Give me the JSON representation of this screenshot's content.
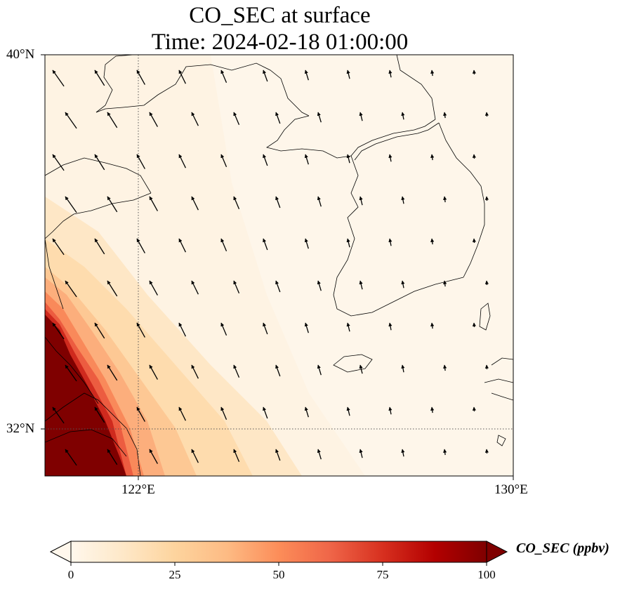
{
  "title": {
    "line1": "CO_SEC at surface",
    "line2": "Time: 2024-02-18 01:00:00"
  },
  "map": {
    "extent": {
      "lon_min": 120,
      "lon_max": 130,
      "lat_min": 31,
      "lat_max": 40
    },
    "lat_ticks": [
      {
        "value": 40,
        "label": "40°N"
      },
      {
        "value": 32,
        "label": "32°N"
      }
    ],
    "lon_ticks": [
      {
        "value": 122,
        "label": "122°E"
      },
      {
        "value": 130,
        "label": "130°E"
      }
    ],
    "gridlines": {
      "lons": [
        122
      ],
      "lats": [
        32
      ],
      "style": "dotted"
    },
    "variable": "CO_SEC",
    "high_concentration_region": "southwest corner (coastal China, around 31-33.5°N, 120-122°E)",
    "wind_direction": "predominantly northwesterly"
  },
  "colorbar": {
    "label": "CO_SEC (ppbv)",
    "min": 0,
    "max": 100,
    "extend": "both",
    "colormap": "OrRd",
    "ticks": [
      "0",
      "25",
      "50",
      "75",
      "100"
    ],
    "colors": [
      "#fff7ec",
      "#fee8c8",
      "#fdd49e",
      "#fdbb84",
      "#fc8d59",
      "#ef6548",
      "#d7301f",
      "#b30000",
      "#7f0000"
    ]
  }
}
